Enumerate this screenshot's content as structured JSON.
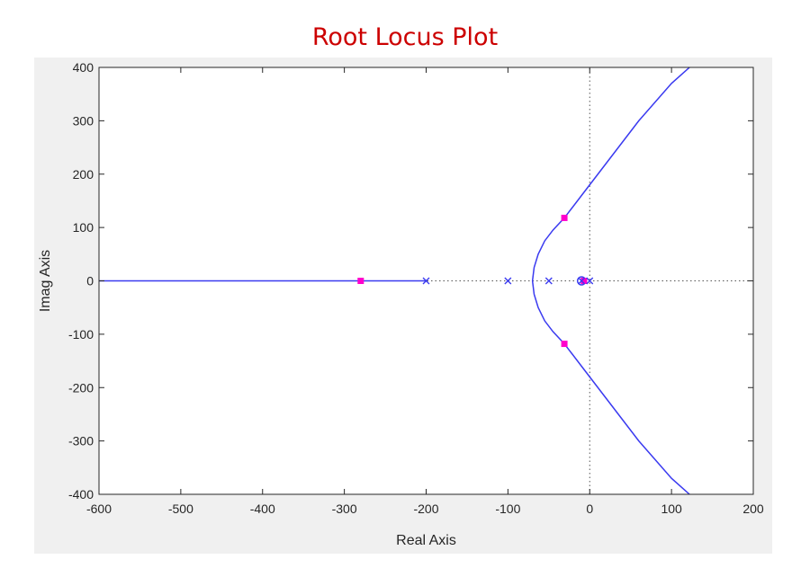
{
  "chart_data": {
    "type": "line",
    "title": "Root Locus Plot",
    "xlabel": "Real Axis",
    "ylabel": "Imag Axis",
    "xlim": [
      -600,
      200
    ],
    "ylim": [
      -400,
      400
    ],
    "xticks": [
      -600,
      -500,
      -400,
      -300,
      -200,
      -100,
      0,
      100,
      200
    ],
    "yticks": [
      -400,
      -300,
      -200,
      -100,
      0,
      100,
      200,
      300,
      400
    ],
    "grid": false,
    "locus_color": "#3a3af0",
    "marker_color": "#ff00cc",
    "axis_line_style": "dotted",
    "open_loop_poles": [
      [
        -200,
        0
      ],
      [
        -100,
        0
      ],
      [
        -50,
        0
      ],
      [
        -10,
        0
      ],
      [
        0,
        0
      ]
    ],
    "open_loop_zeros": [
      [
        -10,
        0
      ]
    ],
    "closed_loop_poles": [
      [
        -280,
        0
      ],
      [
        -31,
        118
      ],
      [
        -31,
        -118
      ],
      [
        -7,
        0
      ]
    ],
    "branches": [
      {
        "x": [
          -600,
          -200
        ],
        "y": [
          0,
          0
        ]
      },
      {
        "x": [
          -70,
          -68,
          -63,
          -55,
          -45,
          -31,
          -10,
          20,
          60,
          100,
          122
        ],
        "y": [
          0,
          25,
          50,
          75,
          95,
          118,
          160,
          220,
          300,
          370,
          400
        ]
      },
      {
        "x": [
          -70,
          -68,
          -63,
          -55,
          -45,
          -31,
          -10,
          20,
          60,
          100,
          122
        ],
        "y": [
          0,
          -25,
          -50,
          -75,
          -95,
          -118,
          -160,
          -220,
          -300,
          -370,
          -400
        ]
      }
    ]
  }
}
